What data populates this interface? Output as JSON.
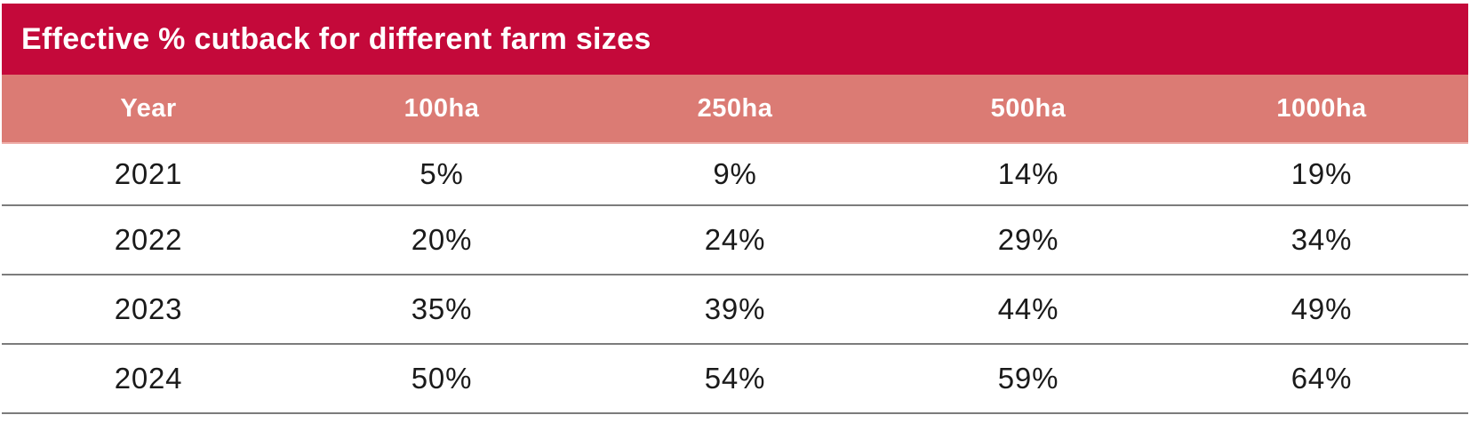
{
  "title": "Effective % cutback for different farm sizes",
  "colors": {
    "title_bar_background": "#C4093A",
    "title_text": "#FFFFFF",
    "header_row_background": "#DB7B74",
    "header_text": "#FFFFFF",
    "header_bottom_edge": "#EFAFAA",
    "row_divider": "#7C7C7C",
    "body_text": "#1A1A1A",
    "page_background": "#FFFFFF"
  },
  "chart_data": {
    "type": "table",
    "title": "Effective % cutback for different farm sizes",
    "columns": [
      "Year",
      "100ha",
      "250ha",
      "500ha",
      "1000ha"
    ],
    "rows": [
      [
        "2021",
        "5%",
        "9%",
        "14%",
        "19%"
      ],
      [
        "2022",
        "20%",
        "24%",
        "29%",
        "34%"
      ],
      [
        "2023",
        "35%",
        "39%",
        "44%",
        "49%"
      ],
      [
        "2024",
        "50%",
        "54%",
        "59%",
        "64%"
      ]
    ]
  }
}
